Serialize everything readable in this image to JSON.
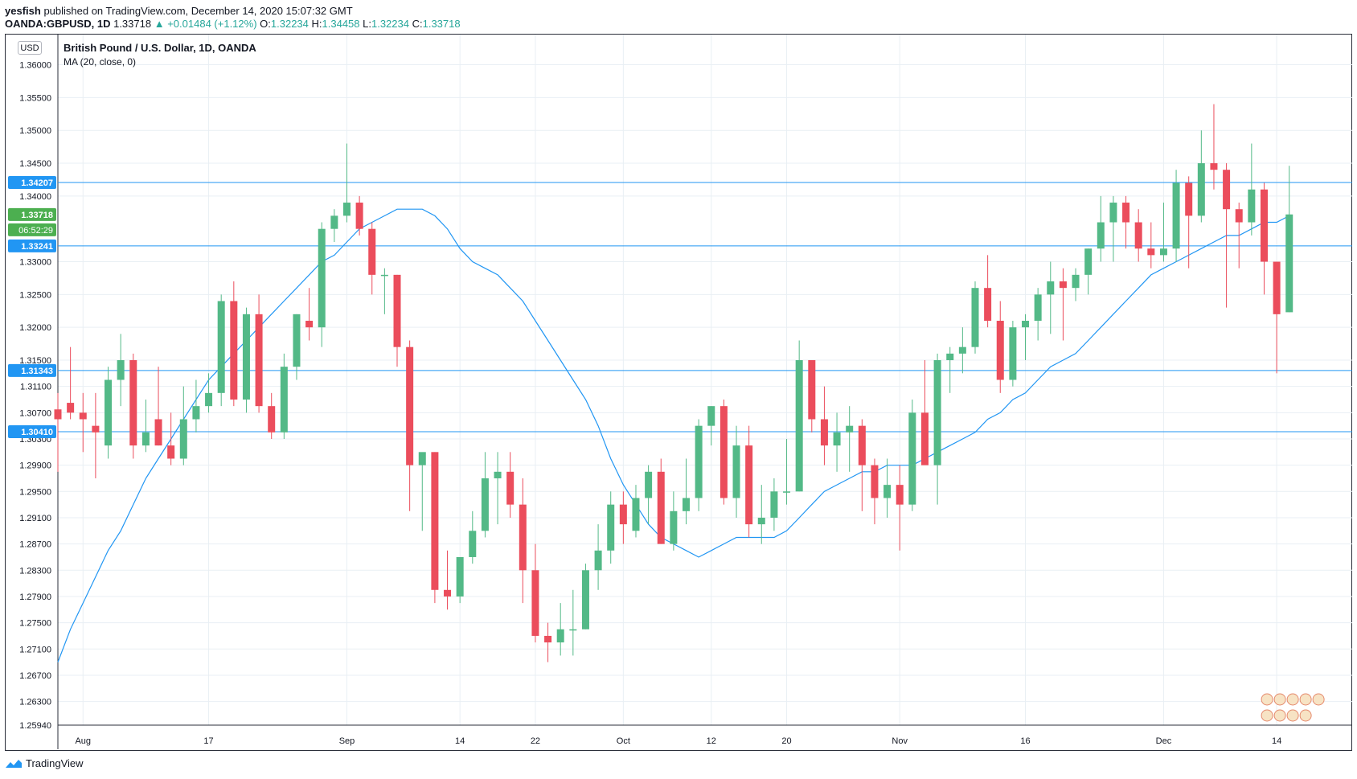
{
  "header": {
    "author": "yesfish",
    "published": "published on TradingView.com, December 14, 2020 15:07:32 GMT",
    "symbol": "OANDA:GBPUSD, 1D",
    "last": "1.33718",
    "change": "+0.01484 (+1.12%)",
    "o_label": "O:",
    "o_value": "1.32234",
    "h_label": "H:",
    "h_value": "1.34458",
    "l_label": "L:",
    "l_value": "1.32234",
    "c_label": "C:",
    "c_value": "1.33718"
  },
  "legend": {
    "title": "British Pound / U.S. Dollar, 1D, OANDA",
    "indicator": "MA (20, close, 0)"
  },
  "currency_button": "USD",
  "footer": {
    "brand": "TradingView"
  },
  "colors": {
    "up": "#53b987",
    "down": "#eb4d5c",
    "ma": "#2196f3",
    "hline": "#2196f3",
    "grid": "#e9eff4",
    "price_label": "#2196f3",
    "last_label": "#4caf50"
  },
  "chart_data": {
    "type": "candlestick",
    "ylim": [
      1.2594,
      1.3646
    ],
    "y_ticks": [
      "1.36000",
      "1.35500",
      "1.35000",
      "1.34500",
      "1.34000",
      "1.33000",
      "1.32500",
      "1.32000",
      "1.31500",
      "1.31100",
      "1.30700",
      "1.30300",
      "1.29900",
      "1.29500",
      "1.29100",
      "1.28700",
      "1.28300",
      "1.27900",
      "1.27500",
      "1.27100",
      "1.26700",
      "1.26300",
      "1.25940"
    ],
    "x_labels": [
      {
        "label": "Aug",
        "bar": 2
      },
      {
        "label": "17",
        "bar": 12
      },
      {
        "label": "Sep",
        "bar": 23
      },
      {
        "label": "14",
        "bar": 32
      },
      {
        "label": "22",
        "bar": 38
      },
      {
        "label": "Oct",
        "bar": 45
      },
      {
        "label": "12",
        "bar": 52
      },
      {
        "label": "20",
        "bar": 58
      },
      {
        "label": "Nov",
        "bar": 67
      },
      {
        "label": "16",
        "bar": 77
      },
      {
        "label": "Dec",
        "bar": 88
      },
      {
        "label": "14",
        "bar": 97
      }
    ],
    "horizontal_lines": [
      {
        "label": "1.34207",
        "value": 1.34207
      },
      {
        "label": "1.33241",
        "value": 1.33241
      },
      {
        "label": "1.31343",
        "value": 1.31343
      },
      {
        "label": "1.30410",
        "value": 1.3041
      }
    ],
    "last_price": {
      "label": "1.33718",
      "value": 1.33718,
      "countdown": "06:52:29"
    },
    "candles": [
      [
        1.3075,
        1.31,
        1.298,
        1.306
      ],
      [
        1.3085,
        1.317,
        1.306,
        1.307
      ],
      [
        1.307,
        1.31,
        1.301,
        1.306
      ],
      [
        1.305,
        1.31,
        1.297,
        1.304
      ],
      [
        1.302,
        1.314,
        1.3,
        1.312
      ],
      [
        1.312,
        1.319,
        1.308,
        1.315
      ],
      [
        1.315,
        1.316,
        1.3,
        1.302
      ],
      [
        1.302,
        1.309,
        1.301,
        1.304
      ],
      [
        1.306,
        1.314,
        1.302,
        1.302
      ],
      [
        1.302,
        1.307,
        1.299,
        1.3
      ],
      [
        1.3,
        1.311,
        1.299,
        1.306
      ],
      [
        1.306,
        1.312,
        1.304,
        1.308
      ],
      [
        1.308,
        1.313,
        1.307,
        1.31
      ],
      [
        1.31,
        1.325,
        1.308,
        1.324
      ],
      [
        1.324,
        1.327,
        1.308,
        1.309
      ],
      [
        1.309,
        1.323,
        1.307,
        1.322
      ],
      [
        1.322,
        1.325,
        1.307,
        1.308
      ],
      [
        1.308,
        1.31,
        1.303,
        1.304
      ],
      [
        1.304,
        1.316,
        1.303,
        1.314
      ],
      [
        1.314,
        1.322,
        1.312,
        1.322
      ],
      [
        1.321,
        1.326,
        1.318,
        1.32
      ],
      [
        1.32,
        1.336,
        1.317,
        1.335
      ],
      [
        1.335,
        1.338,
        1.333,
        1.337
      ],
      [
        1.337,
        1.348,
        1.336,
        1.339
      ],
      [
        1.339,
        1.34,
        1.334,
        1.335
      ],
      [
        1.335,
        1.336,
        1.325,
        1.328
      ],
      [
        1.328,
        1.329,
        1.322,
        1.328
      ],
      [
        1.328,
        1.328,
        1.314,
        1.317
      ],
      [
        1.317,
        1.318,
        1.292,
        1.299
      ],
      [
        1.299,
        1.3,
        1.289,
        1.301
      ],
      [
        1.301,
        1.301,
        1.278,
        1.28
      ],
      [
        1.28,
        1.286,
        1.277,
        1.279
      ],
      [
        1.279,
        1.285,
        1.278,
        1.285
      ],
      [
        1.285,
        1.292,
        1.284,
        1.289
      ],
      [
        1.289,
        1.301,
        1.288,
        1.297
      ],
      [
        1.297,
        1.301,
        1.29,
        1.298
      ],
      [
        1.298,
        1.301,
        1.291,
        1.293
      ],
      [
        1.293,
        1.297,
        1.278,
        1.283
      ],
      [
        1.283,
        1.287,
        1.272,
        1.273
      ],
      [
        1.273,
        1.275,
        1.269,
        1.272
      ],
      [
        1.272,
        1.278,
        1.27,
        1.274
      ],
      [
        1.274,
        1.28,
        1.27,
        1.274
      ],
      [
        1.274,
        1.284,
        1.274,
        1.283
      ],
      [
        1.283,
        1.29,
        1.28,
        1.286
      ],
      [
        1.286,
        1.295,
        1.284,
        1.293
      ],
      [
        1.293,
        1.295,
        1.287,
        1.29
      ],
      [
        1.289,
        1.296,
        1.288,
        1.294
      ],
      [
        1.294,
        1.299,
        1.29,
        1.298
      ],
      [
        1.298,
        1.3,
        1.287,
        1.287
      ],
      [
        1.287,
        1.295,
        1.286,
        1.292
      ],
      [
        1.292,
        1.3,
        1.29,
        1.294
      ],
      [
        1.294,
        1.306,
        1.292,
        1.305
      ],
      [
        1.305,
        1.308,
        1.302,
        1.308
      ],
      [
        1.308,
        1.309,
        1.293,
        1.294
      ],
      [
        1.294,
        1.305,
        1.291,
        1.302
      ],
      [
        1.302,
        1.305,
        1.288,
        1.29
      ],
      [
        1.29,
        1.296,
        1.287,
        1.291
      ],
      [
        1.291,
        1.297,
        1.289,
        1.295
      ],
      [
        1.295,
        1.303,
        1.293,
        1.295
      ],
      [
        1.295,
        1.318,
        1.295,
        1.315
      ],
      [
        1.315,
        1.315,
        1.304,
        1.306
      ],
      [
        1.306,
        1.311,
        1.299,
        1.302
      ],
      [
        1.302,
        1.307,
        1.298,
        1.304
      ],
      [
        1.304,
        1.308,
        1.298,
        1.305
      ],
      [
        1.305,
        1.306,
        1.292,
        1.299
      ],
      [
        1.299,
        1.3,
        1.29,
        1.294
      ],
      [
        1.294,
        1.3,
        1.291,
        1.296
      ],
      [
        1.296,
        1.299,
        1.286,
        1.293
      ],
      [
        1.293,
        1.309,
        1.292,
        1.307
      ],
      [
        1.307,
        1.315,
        1.3,
        1.299
      ],
      [
        1.299,
        1.316,
        1.293,
        1.315
      ],
      [
        1.315,
        1.317,
        1.31,
        1.316
      ],
      [
        1.316,
        1.32,
        1.313,
        1.317
      ],
      [
        1.317,
        1.327,
        1.316,
        1.326
      ],
      [
        1.326,
        1.331,
        1.32,
        1.321
      ],
      [
        1.321,
        1.324,
        1.31,
        1.312
      ],
      [
        1.312,
        1.321,
        1.311,
        1.32
      ],
      [
        1.32,
        1.322,
        1.315,
        1.321
      ],
      [
        1.321,
        1.326,
        1.318,
        1.325
      ],
      [
        1.325,
        1.33,
        1.319,
        1.327
      ],
      [
        1.327,
        1.329,
        1.318,
        1.326
      ],
      [
        1.326,
        1.329,
        1.324,
        1.328
      ],
      [
        1.328,
        1.332,
        1.325,
        1.332
      ],
      [
        1.332,
        1.34,
        1.33,
        1.336
      ],
      [
        1.336,
        1.34,
        1.33,
        1.339
      ],
      [
        1.339,
        1.34,
        1.332,
        1.336
      ],
      [
        1.336,
        1.338,
        1.33,
        1.332
      ],
      [
        1.332,
        1.336,
        1.329,
        1.331
      ],
      [
        1.331,
        1.339,
        1.33,
        1.332
      ],
      [
        1.332,
        1.344,
        1.33,
        1.342
      ],
      [
        1.342,
        1.343,
        1.329,
        1.337
      ],
      [
        1.337,
        1.35,
        1.336,
        1.345
      ],
      [
        1.345,
        1.354,
        1.341,
        1.344
      ],
      [
        1.344,
        1.345,
        1.323,
        1.338
      ],
      [
        1.338,
        1.339,
        1.329,
        1.336
      ],
      [
        1.336,
        1.348,
        1.334,
        1.341
      ],
      [
        1.341,
        1.342,
        1.325,
        1.33
      ],
      [
        1.33,
        1.33,
        1.313,
        1.322
      ],
      [
        1.3223,
        1.3446,
        1.3223,
        1.3372
      ]
    ],
    "ma20": [
      1.269,
      1.274,
      1.278,
      1.282,
      1.286,
      1.289,
      1.293,
      1.297,
      1.3,
      1.303,
      1.306,
      1.309,
      1.312,
      1.314,
      1.316,
      1.318,
      1.32,
      1.322,
      1.324,
      1.326,
      1.328,
      1.33,
      1.331,
      1.333,
      1.335,
      1.336,
      1.337,
      1.338,
      1.338,
      1.338,
      1.337,
      1.335,
      1.332,
      1.33,
      1.329,
      1.328,
      1.326,
      1.324,
      1.321,
      1.318,
      1.315,
      1.312,
      1.309,
      1.305,
      1.3,
      1.296,
      1.293,
      1.29,
      1.288,
      1.287,
      1.286,
      1.285,
      1.286,
      1.287,
      1.288,
      1.288,
      1.288,
      1.288,
      1.289,
      1.291,
      1.293,
      1.295,
      1.296,
      1.297,
      1.298,
      1.298,
      1.299,
      1.299,
      1.299,
      1.3,
      1.301,
      1.302,
      1.303,
      1.304,
      1.306,
      1.307,
      1.309,
      1.31,
      1.312,
      1.314,
      1.315,
      1.316,
      1.318,
      1.32,
      1.322,
      1.324,
      1.326,
      1.328,
      1.329,
      1.33,
      1.331,
      1.332,
      1.333,
      1.334,
      1.334,
      1.335,
      1.336,
      1.336,
      1.337
    ]
  }
}
